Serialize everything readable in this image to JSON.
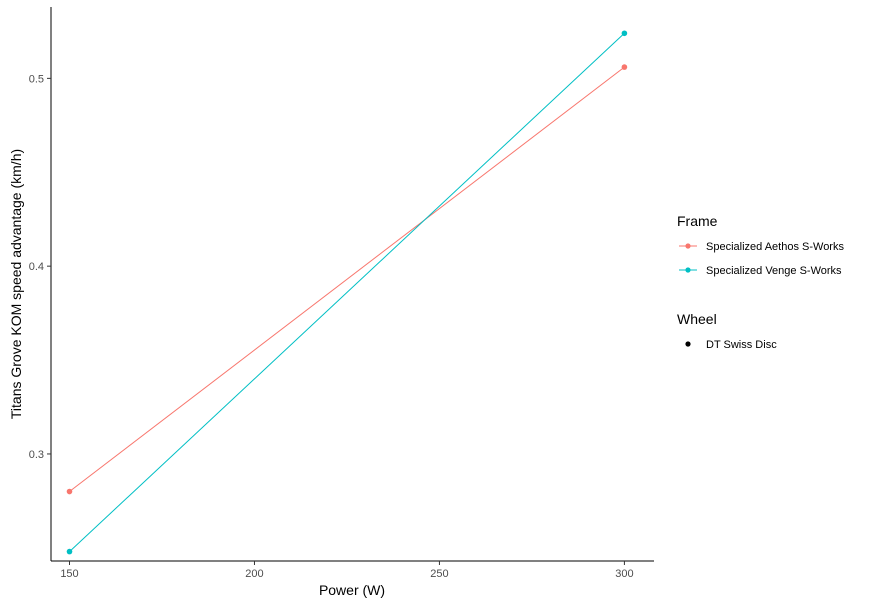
{
  "chart_data": {
    "type": "line",
    "xlabel": "Power (W)",
    "ylabel": "Titans Grove KOM speed advantage (km/h)",
    "xlim": [
      145,
      308
    ],
    "ylim": [
      0.243,
      0.538
    ],
    "x_ticks": [
      150,
      200,
      250,
      300
    ],
    "y_ticks": [
      0.3,
      0.4,
      0.5
    ],
    "x_tick_labels": [
      "150",
      "200",
      "250",
      "300"
    ],
    "y_tick_labels": [
      "0.3",
      "0.4",
      "0.5"
    ],
    "grid": false,
    "series": [
      {
        "name": "Specialized Aethos S-Works",
        "color": "#F8766D",
        "x": [
          150,
          300
        ],
        "y": [
          0.28,
          0.506
        ]
      },
      {
        "name": "Specialized Venge S-Works",
        "color": "#00BFC4",
        "x": [
          150,
          300
        ],
        "y": [
          0.248,
          0.524
        ]
      }
    ],
    "legends": [
      {
        "title": "Frame",
        "entries": [
          "Specialized Aethos S-Works",
          "Specialized Venge S-Works"
        ]
      },
      {
        "title": "Wheel",
        "entries": [
          "DT Swiss Disc"
        ]
      }
    ]
  }
}
